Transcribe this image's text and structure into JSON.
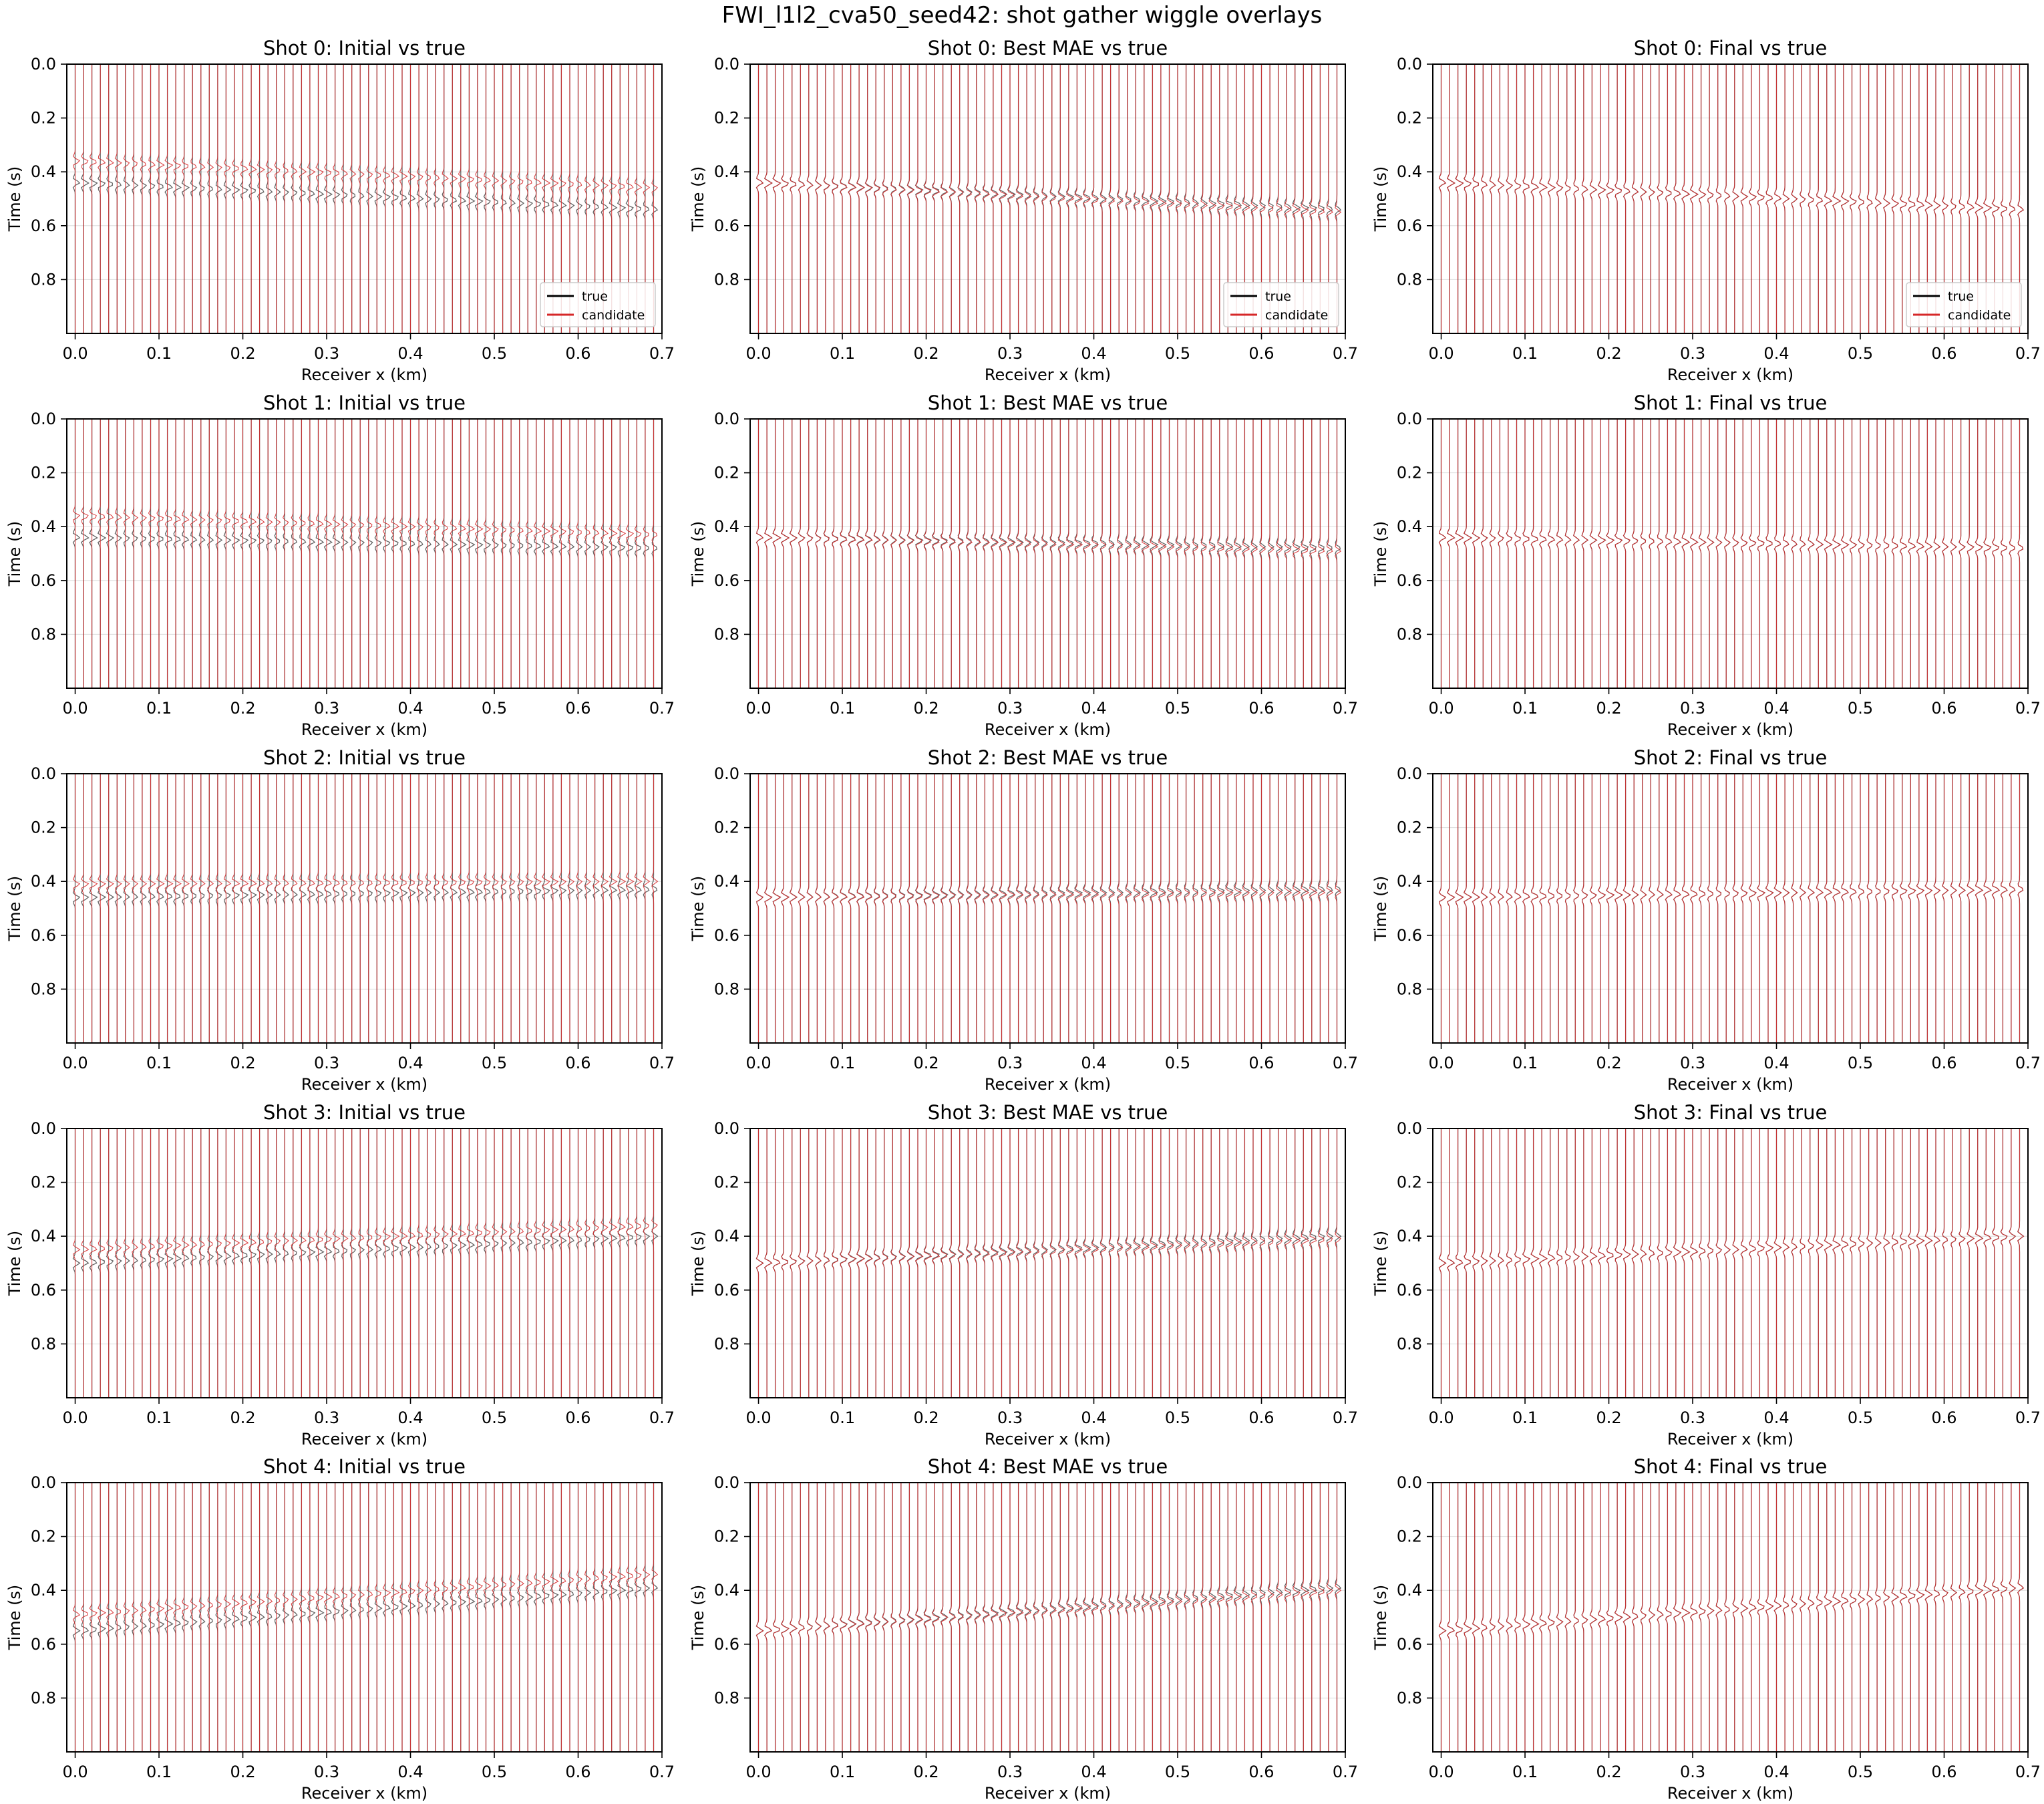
{
  "figure": {
    "title": "FWI_l1l2_cva50_seed42: shot gather wiggle overlays",
    "colors": {
      "true": "#000000",
      "candidate": "#d62728",
      "grid": "#dddddd"
    }
  },
  "chart_data": [
    {
      "type": "line",
      "title": "Shot 0: Initial vs true",
      "xlabel": "Receiver x (km)",
      "ylabel": "Time (s)",
      "xlim": [
        -0.01,
        0.7
      ],
      "ylim": [
        1.0,
        0.0
      ],
      "xticks": [
        "0.0",
        "0.1",
        "0.2",
        "0.3",
        "0.4",
        "0.5",
        "0.6",
        "0.7"
      ],
      "yticks": [
        "0.0",
        "0.2",
        "0.4",
        "0.6",
        "0.8"
      ],
      "receivers": {
        "start": 0.0,
        "end": 0.69,
        "count": 70
      },
      "series": [
        {
          "name": "true",
          "arrival_time_s": [
            0.44,
            0.54
          ]
        },
        {
          "name": "candidate",
          "arrival_time_s": [
            0.36,
            0.46
          ]
        }
      ],
      "legend": {
        "position": "lower-right",
        "entries": [
          "true",
          "candidate"
        ]
      },
      "grid": true
    },
    {
      "type": "line",
      "title": "Shot 0: Best MAE vs true",
      "xlabel": "Receiver x (km)",
      "ylabel": "Time (s)",
      "xlim": [
        -0.01,
        0.7
      ],
      "ylim": [
        1.0,
        0.0
      ],
      "xticks": [
        "0.0",
        "0.1",
        "0.2",
        "0.3",
        "0.4",
        "0.5",
        "0.6",
        "0.7"
      ],
      "yticks": [
        "0.0",
        "0.2",
        "0.4",
        "0.6",
        "0.8"
      ],
      "receivers": {
        "start": 0.0,
        "end": 0.69,
        "count": 70
      },
      "series": [
        {
          "name": "true",
          "arrival_time_s": [
            0.44,
            0.54
          ]
        },
        {
          "name": "candidate",
          "arrival_time_s": [
            0.44,
            0.55
          ]
        }
      ],
      "legend": {
        "position": "lower-right",
        "entries": [
          "true",
          "candidate"
        ]
      },
      "grid": true
    },
    {
      "type": "line",
      "title": "Shot 0: Final vs true",
      "xlabel": "Receiver x (km)",
      "ylabel": "Time (s)",
      "xlim": [
        -0.01,
        0.7
      ],
      "ylim": [
        1.0,
        0.0
      ],
      "xticks": [
        "0.0",
        "0.1",
        "0.2",
        "0.3",
        "0.4",
        "0.5",
        "0.6",
        "0.7"
      ],
      "yticks": [
        "0.0",
        "0.2",
        "0.4",
        "0.6",
        "0.8"
      ],
      "receivers": {
        "start": 0.0,
        "end": 0.69,
        "count": 70
      },
      "series": [
        {
          "name": "true",
          "arrival_time_s": [
            0.44,
            0.54
          ]
        },
        {
          "name": "candidate",
          "arrival_time_s": [
            0.44,
            0.54
          ]
        }
      ],
      "legend": {
        "position": "lower-right",
        "entries": [
          "true",
          "candidate"
        ]
      },
      "grid": true
    },
    {
      "type": "line",
      "title": "Shot 1: Initial vs true",
      "xlabel": "Receiver x (km)",
      "ylabel": "Time (s)",
      "xlim": [
        -0.01,
        0.7
      ],
      "ylim": [
        1.0,
        0.0
      ],
      "xticks": [
        "0.0",
        "0.1",
        "0.2",
        "0.3",
        "0.4",
        "0.5",
        "0.6",
        "0.7"
      ],
      "yticks": [
        "0.0",
        "0.2",
        "0.4",
        "0.6",
        "0.8"
      ],
      "receivers": {
        "start": 0.0,
        "end": 0.69,
        "count": 70
      },
      "series": [
        {
          "name": "true",
          "arrival_time_s": [
            0.44,
            0.48
          ]
        },
        {
          "name": "candidate",
          "arrival_time_s": [
            0.36,
            0.43
          ]
        }
      ],
      "legend": null,
      "grid": true
    },
    {
      "type": "line",
      "title": "Shot 1: Best MAE vs true",
      "xlabel": "Receiver x (km)",
      "ylabel": "Time (s)",
      "xlim": [
        -0.01,
        0.7
      ],
      "ylim": [
        1.0,
        0.0
      ],
      "xticks": [
        "0.0",
        "0.1",
        "0.2",
        "0.3",
        "0.4",
        "0.5",
        "0.6",
        "0.7"
      ],
      "yticks": [
        "0.0",
        "0.2",
        "0.4",
        "0.6",
        "0.8"
      ],
      "receivers": {
        "start": 0.0,
        "end": 0.69,
        "count": 70
      },
      "series": [
        {
          "name": "true",
          "arrival_time_s": [
            0.44,
            0.48
          ]
        },
        {
          "name": "candidate",
          "arrival_time_s": [
            0.44,
            0.49
          ]
        }
      ],
      "legend": null,
      "grid": true
    },
    {
      "type": "line",
      "title": "Shot 1: Final vs true",
      "xlabel": "Receiver x (km)",
      "ylabel": "Time (s)",
      "xlim": [
        -0.01,
        0.7
      ],
      "ylim": [
        1.0,
        0.0
      ],
      "xticks": [
        "0.0",
        "0.1",
        "0.2",
        "0.3",
        "0.4",
        "0.5",
        "0.6",
        "0.7"
      ],
      "yticks": [
        "0.0",
        "0.2",
        "0.4",
        "0.6",
        "0.8"
      ],
      "receivers": {
        "start": 0.0,
        "end": 0.69,
        "count": 70
      },
      "series": [
        {
          "name": "true",
          "arrival_time_s": [
            0.44,
            0.48
          ]
        },
        {
          "name": "candidate",
          "arrival_time_s": [
            0.44,
            0.48
          ]
        }
      ],
      "legend": null,
      "grid": true
    },
    {
      "type": "line",
      "title": "Shot 2: Initial vs true",
      "xlabel": "Receiver x (km)",
      "ylabel": "Time (s)",
      "xlim": [
        -0.01,
        0.7
      ],
      "ylim": [
        1.0,
        0.0
      ],
      "xticks": [
        "0.0",
        "0.1",
        "0.2",
        "0.3",
        "0.4",
        "0.5",
        "0.6",
        "0.7"
      ],
      "yticks": [
        "0.0",
        "0.2",
        "0.4",
        "0.6",
        "0.8"
      ],
      "receivers": {
        "start": 0.0,
        "end": 0.69,
        "count": 70
      },
      "series": [
        {
          "name": "true",
          "arrival_time_s": [
            0.46,
            0.43
          ]
        },
        {
          "name": "candidate",
          "arrival_time_s": [
            0.41,
            0.4
          ]
        }
      ],
      "legend": null,
      "grid": true
    },
    {
      "type": "line",
      "title": "Shot 2: Best MAE vs true",
      "xlabel": "Receiver x (km)",
      "ylabel": "Time (s)",
      "xlim": [
        -0.01,
        0.7
      ],
      "ylim": [
        1.0,
        0.0
      ],
      "xticks": [
        "0.0",
        "0.1",
        "0.2",
        "0.3",
        "0.4",
        "0.5",
        "0.6",
        "0.7"
      ],
      "yticks": [
        "0.0",
        "0.2",
        "0.4",
        "0.6",
        "0.8"
      ],
      "receivers": {
        "start": 0.0,
        "end": 0.69,
        "count": 70
      },
      "series": [
        {
          "name": "true",
          "arrival_time_s": [
            0.46,
            0.43
          ]
        },
        {
          "name": "candidate",
          "arrival_time_s": [
            0.46,
            0.44
          ]
        }
      ],
      "legend": null,
      "grid": true
    },
    {
      "type": "line",
      "title": "Shot 2: Final vs true",
      "xlabel": "Receiver x (km)",
      "ylabel": "Time (s)",
      "xlim": [
        -0.01,
        0.7
      ],
      "ylim": [
        1.0,
        0.0
      ],
      "xticks": [
        "0.0",
        "0.1",
        "0.2",
        "0.3",
        "0.4",
        "0.5",
        "0.6",
        "0.7"
      ],
      "yticks": [
        "0.0",
        "0.2",
        "0.4",
        "0.6",
        "0.8"
      ],
      "receivers": {
        "start": 0.0,
        "end": 0.69,
        "count": 70
      },
      "series": [
        {
          "name": "true",
          "arrival_time_s": [
            0.46,
            0.43
          ]
        },
        {
          "name": "candidate",
          "arrival_time_s": [
            0.46,
            0.43
          ]
        }
      ],
      "legend": null,
      "grid": true
    },
    {
      "type": "line",
      "title": "Shot 3: Initial vs true",
      "xlabel": "Receiver x (km)",
      "ylabel": "Time (s)",
      "xlim": [
        -0.01,
        0.7
      ],
      "ylim": [
        1.0,
        0.0
      ],
      "xticks": [
        "0.0",
        "0.1",
        "0.2",
        "0.3",
        "0.4",
        "0.5",
        "0.6",
        "0.7"
      ],
      "yticks": [
        "0.0",
        "0.2",
        "0.4",
        "0.6",
        "0.8"
      ],
      "receivers": {
        "start": 0.0,
        "end": 0.69,
        "count": 70
      },
      "series": [
        {
          "name": "true",
          "arrival_time_s": [
            0.5,
            0.4
          ]
        },
        {
          "name": "candidate",
          "arrival_time_s": [
            0.45,
            0.36
          ]
        }
      ],
      "legend": null,
      "grid": true
    },
    {
      "type": "line",
      "title": "Shot 3: Best MAE vs true",
      "xlabel": "Receiver x (km)",
      "ylabel": "Time (s)",
      "xlim": [
        -0.01,
        0.7
      ],
      "ylim": [
        1.0,
        0.0
      ],
      "xticks": [
        "0.0",
        "0.1",
        "0.2",
        "0.3",
        "0.4",
        "0.5",
        "0.6",
        "0.7"
      ],
      "yticks": [
        "0.0",
        "0.2",
        "0.4",
        "0.6",
        "0.8"
      ],
      "receivers": {
        "start": 0.0,
        "end": 0.69,
        "count": 70
      },
      "series": [
        {
          "name": "true",
          "arrival_time_s": [
            0.5,
            0.4
          ]
        },
        {
          "name": "candidate",
          "arrival_time_s": [
            0.5,
            0.41
          ]
        }
      ],
      "legend": null,
      "grid": true
    },
    {
      "type": "line",
      "title": "Shot 3: Final vs true",
      "xlabel": "Receiver x (km)",
      "ylabel": "Time (s)",
      "xlim": [
        -0.01,
        0.7
      ],
      "ylim": [
        1.0,
        0.0
      ],
      "xticks": [
        "0.0",
        "0.1",
        "0.2",
        "0.3",
        "0.4",
        "0.5",
        "0.6",
        "0.7"
      ],
      "yticks": [
        "0.0",
        "0.2",
        "0.4",
        "0.6",
        "0.8"
      ],
      "receivers": {
        "start": 0.0,
        "end": 0.69,
        "count": 70
      },
      "series": [
        {
          "name": "true",
          "arrival_time_s": [
            0.5,
            0.4
          ]
        },
        {
          "name": "candidate",
          "arrival_time_s": [
            0.5,
            0.4
          ]
        }
      ],
      "legend": null,
      "grid": true
    },
    {
      "type": "line",
      "title": "Shot 4: Initial vs true",
      "xlabel": "Receiver x (km)",
      "ylabel": "Time (s)",
      "xlim": [
        -0.01,
        0.7
      ],
      "ylim": [
        1.0,
        0.0
      ],
      "xticks": [
        "0.0",
        "0.1",
        "0.2",
        "0.3",
        "0.4",
        "0.5",
        "0.6",
        "0.7"
      ],
      "yticks": [
        "0.0",
        "0.2",
        "0.4",
        "0.6",
        "0.8"
      ],
      "receivers": {
        "start": 0.0,
        "end": 0.69,
        "count": 70
      },
      "series": [
        {
          "name": "true",
          "arrival_time_s": [
            0.55,
            0.39
          ]
        },
        {
          "name": "candidate",
          "arrival_time_s": [
            0.49,
            0.34
          ]
        }
      ],
      "legend": null,
      "grid": true
    },
    {
      "type": "line",
      "title": "Shot 4: Best MAE vs true",
      "xlabel": "Receiver x (km)",
      "ylabel": "Time (s)",
      "xlim": [
        -0.01,
        0.7
      ],
      "ylim": [
        1.0,
        0.0
      ],
      "xticks": [
        "0.0",
        "0.1",
        "0.2",
        "0.3",
        "0.4",
        "0.5",
        "0.6",
        "0.7"
      ],
      "yticks": [
        "0.0",
        "0.2",
        "0.4",
        "0.6",
        "0.8"
      ],
      "receivers": {
        "start": 0.0,
        "end": 0.69,
        "count": 70
      },
      "series": [
        {
          "name": "true",
          "arrival_time_s": [
            0.55,
            0.39
          ]
        },
        {
          "name": "candidate",
          "arrival_time_s": [
            0.55,
            0.4
          ]
        }
      ],
      "legend": null,
      "grid": true
    },
    {
      "type": "line",
      "title": "Shot 4: Final vs true",
      "xlabel": "Receiver x (km)",
      "ylabel": "Time (s)",
      "xlim": [
        -0.01,
        0.7
      ],
      "ylim": [
        1.0,
        0.0
      ],
      "xticks": [
        "0.0",
        "0.1",
        "0.2",
        "0.3",
        "0.4",
        "0.5",
        "0.6",
        "0.7"
      ],
      "yticks": [
        "0.0",
        "0.2",
        "0.4",
        "0.6",
        "0.8"
      ],
      "receivers": {
        "start": 0.0,
        "end": 0.69,
        "count": 70
      },
      "series": [
        {
          "name": "true",
          "arrival_time_s": [
            0.55,
            0.39
          ]
        },
        {
          "name": "candidate",
          "arrival_time_s": [
            0.55,
            0.39
          ]
        }
      ],
      "legend": null,
      "grid": true
    }
  ]
}
